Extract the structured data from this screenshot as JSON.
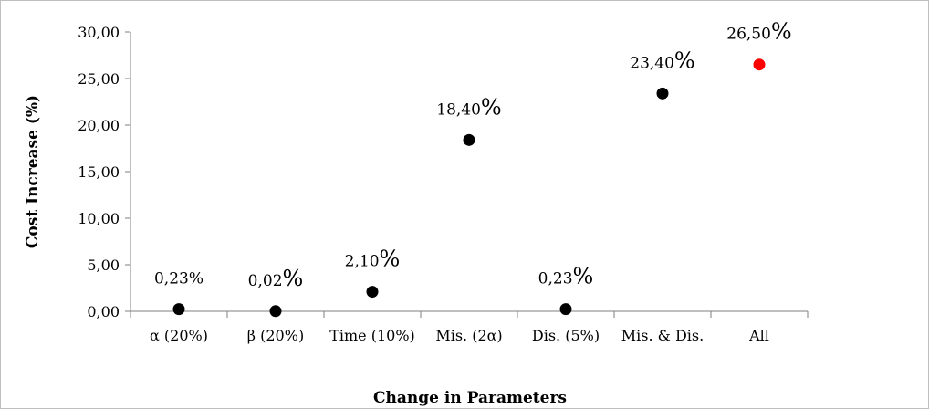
{
  "chart_data": {
    "type": "scatter",
    "title": "",
    "xlabel": "Change in Parameters",
    "ylabel": "Cost Increase (%)",
    "ylim": [
      0,
      30
    ],
    "yticks": [
      "0,00",
      "5,00",
      "10,00",
      "15,00",
      "20,00",
      "25,00",
      "30,00"
    ],
    "ytick_values": [
      0,
      5,
      10,
      15,
      20,
      25,
      30
    ],
    "grid": false,
    "legend": "none",
    "categories": [
      "α (20%)",
      "β (20%)",
      "Time (10%)",
      "Mis. (2α)",
      "Dis. (5%)",
      "Mis. & Dis.",
      "All"
    ],
    "values": [
      0.23,
      0.02,
      2.1,
      18.4,
      0.23,
      23.4,
      26.5
    ],
    "labels": [
      {
        "num": "0,23",
        "pct": "%",
        "big": false
      },
      {
        "num": "0,02",
        "pct": "%",
        "big": true
      },
      {
        "num": "2,10",
        "pct": "%",
        "big": true
      },
      {
        "num": "18,40",
        "pct": "%",
        "big": true
      },
      {
        "num": "0,23",
        "pct": "%",
        "big": true
      },
      {
        "num": "23,40",
        "pct": "%",
        "big": true
      },
      {
        "num": "26,50",
        "pct": "%",
        "big": true
      }
    ],
    "point_colors": [
      "#000000",
      "#000000",
      "#000000",
      "#000000",
      "#000000",
      "#000000",
      "#ff0000"
    ]
  }
}
